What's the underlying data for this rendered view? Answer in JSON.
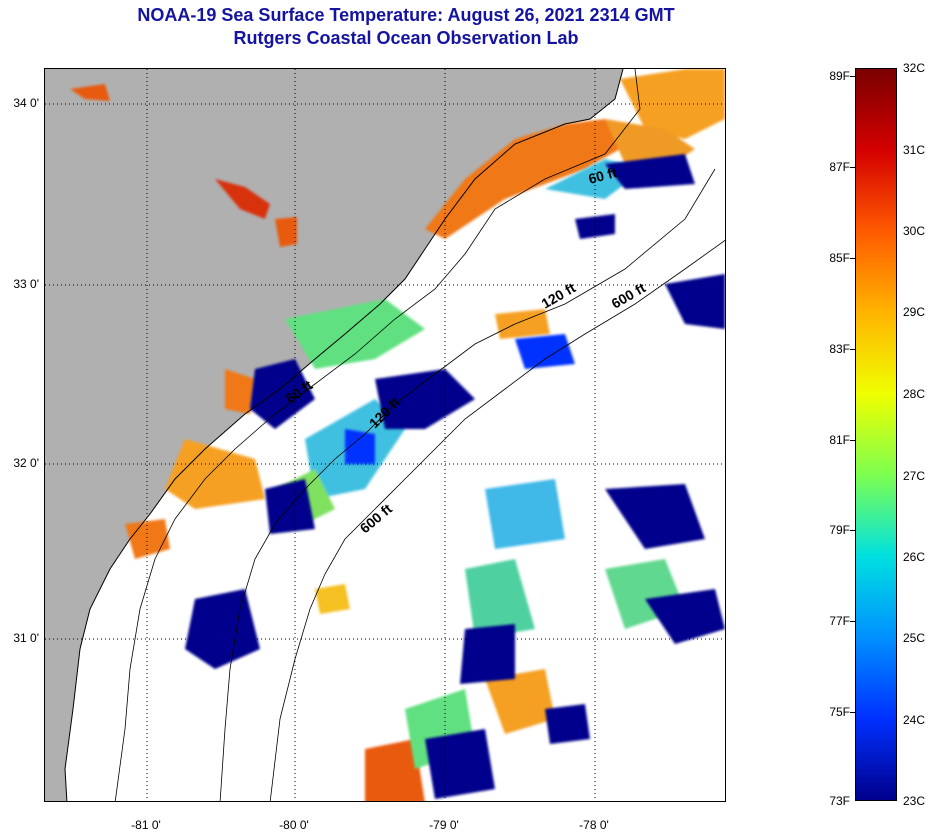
{
  "title": {
    "line1": "NOAA-19 Sea Surface Temperature:  August 26, 2021 2314 GMT",
    "line2": "Rutgers Coastal Ocean Observation Lab"
  },
  "map": {
    "lat_labels": [
      "34 0'",
      "33 0'",
      "32 0'",
      "31 0'"
    ],
    "lon_labels": [
      "-81 0'",
      "-80 0'",
      "-79 0'",
      "-78 0'"
    ],
    "contour_labels": [
      "60 ft",
      "120 ft",
      "600 ft",
      "60 ft",
      "120 ft",
      "600 ft"
    ],
    "colors": {
      "land": "#b0b0b0",
      "no_data": "#ffffff",
      "cold": "#00008c",
      "warm": "#e85a10"
    }
  },
  "colorbar": {
    "fahrenheit_labels": [
      "89F",
      "87F",
      "85F",
      "83F",
      "81F",
      "79F",
      "77F",
      "75F",
      "73F"
    ],
    "celsius_labels": [
      "32C",
      "31C",
      "30C",
      "29C",
      "28C",
      "27C",
      "26C",
      "25C",
      "24C",
      "23C"
    ],
    "scale_colors": [
      "#7a0000",
      "#d40000",
      "#ff5a00",
      "#ffb400",
      "#f0ff00",
      "#7dff50",
      "#00e0e0",
      "#0090ff",
      "#0030ff",
      "#00008c"
    ]
  }
}
